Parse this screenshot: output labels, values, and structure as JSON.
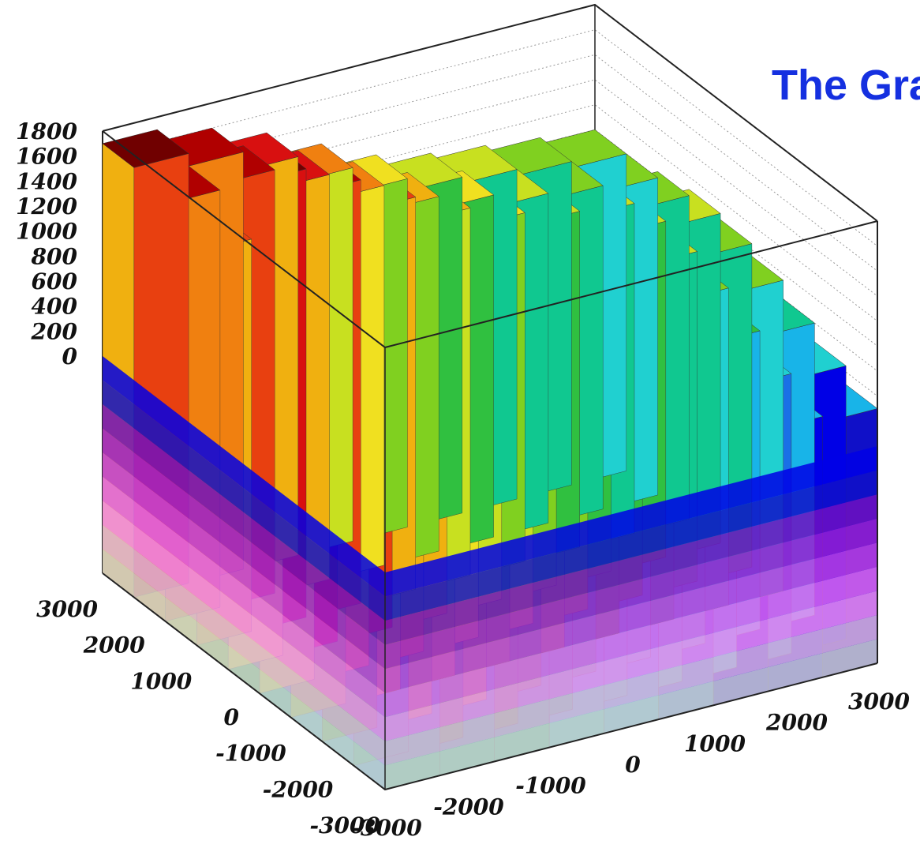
{
  "chart_data": {
    "type": "lego3d",
    "title": "The Gra",
    "z_ticks": [
      "1800",
      "1600",
      "1400",
      "1200",
      "1000",
      "800",
      "600",
      "400",
      "200",
      "0"
    ],
    "y_ticks": [
      "3000",
      "2000",
      "1000",
      "0",
      "-1000",
      "-2000",
      "-3000"
    ],
    "x_ticks": [
      "-3000",
      "-2000",
      "-1000",
      "0",
      "1000",
      "2000",
      "3000"
    ],
    "xlim": [
      -3000,
      3000
    ],
    "ylim": [
      -3000,
      3000
    ],
    "zlim": [
      0,
      1800
    ],
    "grid": true,
    "palette": [
      "#cccccc",
      "#dcb4dc",
      "#f08cf0",
      "#e066ee",
      "#c040e0",
      "#9a20d0",
      "#7010c0",
      "#1010c8",
      "#0000e6",
      "#1a70e6",
      "#18b4e8",
      "#20d0d0",
      "#10c890",
      "#30c040",
      "#80d020",
      "#c8e020",
      "#f0e020",
      "#f0b010",
      "#f08010",
      "#e84010",
      "#d81010",
      "#b00000",
      "#700000"
    ],
    "surface": [
      [
        1700,
        1600,
        1450,
        1250,
        1050,
        950,
        900,
        850,
        800
      ],
      [
        1600,
        1650,
        1500,
        1300,
        1100,
        1000,
        900,
        850,
        800
      ],
      [
        1400,
        1850,
        1650,
        1400,
        1200,
        1050,
        950,
        900,
        850
      ],
      [
        1300,
        1750,
        1700,
        1450,
        1250,
        1100,
        1000,
        950,
        900
      ],
      [
        1200,
        1450,
        1400,
        1300,
        1200,
        1100,
        950,
        900,
        850
      ],
      [
        1050,
        1250,
        1200,
        1150,
        1050,
        950,
        850,
        800,
        750
      ],
      [
        950,
        1100,
        1050,
        950,
        900,
        800,
        700,
        650,
        600
      ],
      [
        900,
        1000,
        950,
        850,
        750,
        700,
        600,
        500,
        450
      ],
      [
        850,
        900,
        850,
        750,
        650,
        550,
        450,
        350,
        300
      ]
    ]
  }
}
